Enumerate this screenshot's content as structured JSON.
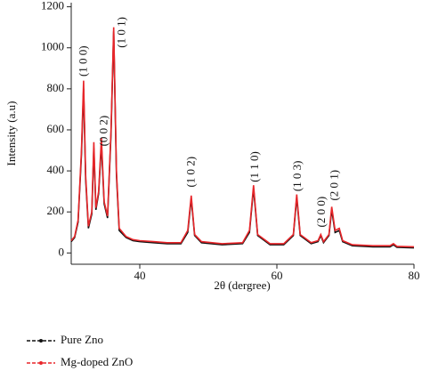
{
  "chart_data": {
    "type": "line",
    "xlabel": "2θ (dergree)",
    "ylabel": "Intensity (a.u)",
    "xlim": [
      30,
      80
    ],
    "xticks": [
      40,
      60,
      80
    ],
    "ylim": [
      -55,
      1220
    ],
    "yticks": [
      0,
      200,
      400,
      600,
      800,
      1000,
      1200
    ],
    "x": [
      30,
      30.5,
      31,
      31.5,
      31.8,
      32.1,
      32.5,
      33,
      33.3,
      33.6,
      34,
      34.4,
      34.8,
      35.3,
      35.8,
      36.2,
      36.6,
      37,
      38,
      39,
      40,
      42,
      44,
      46,
      47,
      47.5,
      48,
      49,
      52,
      55,
      56,
      56.6,
      57.2,
      59,
      61,
      62.4,
      62.9,
      63.4,
      65,
      66,
      66.4,
      66.8,
      67.6,
      68,
      68.5,
      69.1,
      69.6,
      71,
      74,
      76.5,
      77,
      77.5,
      80
    ],
    "series": [
      {
        "name": "Pure Zno",
        "color": "#111111",
        "values": [
          55,
          75,
          150,
          480,
          800,
          360,
          120,
          190,
          510,
          210,
          290,
          530,
          240,
          170,
          580,
          1080,
          380,
          110,
          75,
          60,
          55,
          50,
          45,
          45,
          100,
          265,
          85,
          50,
          40,
          45,
          100,
          315,
          85,
          40,
          40,
          85,
          270,
          85,
          45,
          55,
          85,
          50,
          85,
          210,
          100,
          110,
          55,
          35,
          30,
          30,
          40,
          28,
          25
        ]
      },
      {
        "name": "Mg-doped ZnO",
        "color": "#e8262a",
        "values": [
          60,
          80,
          160,
          500,
          840,
          380,
          130,
          200,
          540,
          220,
          300,
          560,
          250,
          180,
          600,
          1100,
          400,
          120,
          80,
          65,
          60,
          55,
          50,
          50,
          110,
          280,
          90,
          55,
          45,
          50,
          110,
          330,
          90,
          45,
          45,
          90,
          285,
          90,
          50,
          60,
          90,
          55,
          90,
          225,
          110,
          120,
          60,
          40,
          35,
          35,
          45,
          32,
          30
        ]
      }
    ],
    "annotations": [
      {
        "text": "(1 0 0)",
        "x": 31.9,
        "y": 860
      },
      {
        "text": "(0 0 2)",
        "x": 34.9,
        "y": 520
      },
      {
        "text": "(1 0 1)",
        "x": 37.5,
        "y": 1000
      },
      {
        "text": "(1 0 2)",
        "x": 47.6,
        "y": 320
      },
      {
        "text": "(1 1 0)",
        "x": 56.9,
        "y": 345
      },
      {
        "text": "(1 0 3)",
        "x": 63.1,
        "y": 300
      },
      {
        "text": "(2 0 0)",
        "x": 66.6,
        "y": 125
      },
      {
        "text": "(2 0 1)",
        "x": 68.5,
        "y": 255
      }
    ]
  }
}
